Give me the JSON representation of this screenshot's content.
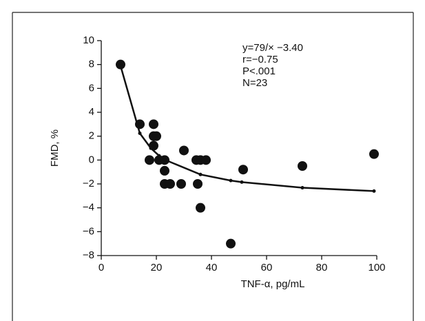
{
  "chart_data": {
    "type": "scatter",
    "xlabel": "TNF-α, pg/mL",
    "ylabel": "FMD, %",
    "annotations": [
      "y=79/× −3.40",
      "r=−0.75",
      "P<.001",
      "N=23"
    ],
    "xlim": [
      0,
      100
    ],
    "xticks": [
      0,
      20,
      40,
      60,
      80,
      100
    ],
    "ylim": [
      -8,
      10
    ],
    "yticks": [
      {
        "value": -8,
        "label": "−8"
      },
      {
        "value": -6,
        "label": "−6"
      },
      {
        "value": -4,
        "label": "−4"
      },
      {
        "value": -2,
        "label": "−2"
      },
      0,
      2,
      4,
      6,
      8,
      10
    ],
    "series": [
      {
        "color": "#111111",
        "x": [
          7,
          14,
          17.5,
          19,
          19,
          19,
          20,
          21,
          23,
          23,
          23,
          25,
          29,
          30,
          34.5,
          35,
          36,
          36,
          38,
          47,
          51.5,
          73,
          99
        ],
        "values": [
          8,
          3,
          0,
          3,
          1.2,
          2,
          2,
          0,
          0,
          -0.9,
          -2,
          -2,
          -2,
          0.8,
          0,
          -2,
          -4,
          0,
          0,
          -7,
          -0.8,
          -0.5,
          0.5
        ]
      },
      {
        "type": "line",
        "color": "#111111",
        "x": [
          7,
          14,
          18,
          21,
          23,
          36,
          47,
          51,
          73,
          99
        ],
        "values": [
          7.89,
          2.24,
          0.99,
          0.36,
          0.03,
          -1.21,
          -1.72,
          -1.85,
          -2.32,
          -2.6
        ]
      }
    ]
  }
}
